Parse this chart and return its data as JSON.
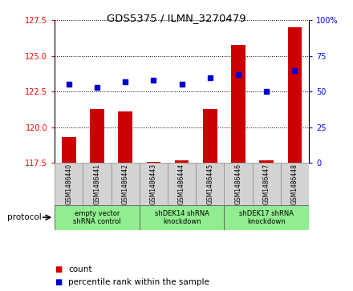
{
  "title": "GDS5375 / ILMN_3270479",
  "samples": [
    "GSM1486440",
    "GSM1486441",
    "GSM1486442",
    "GSM1486443",
    "GSM1486444",
    "GSM1486445",
    "GSM1486446",
    "GSM1486447",
    "GSM1486448"
  ],
  "count_values": [
    119.3,
    121.3,
    121.1,
    117.6,
    117.7,
    121.3,
    125.8,
    117.7,
    127.0
  ],
  "percentile_values": [
    55,
    53,
    57,
    58,
    55,
    60,
    62,
    50,
    65
  ],
  "ylim_left": [
    117.5,
    127.5
  ],
  "ylim_right": [
    0,
    100
  ],
  "yticks_left": [
    117.5,
    120,
    122.5,
    125,
    127.5
  ],
  "yticks_right": [
    0,
    25,
    50,
    75,
    100
  ],
  "group_labels": [
    "empty vector\nshRNA control",
    "shDEK14 shRNA\nknockdown",
    "shDEK17 shRNA\nknockdown"
  ],
  "group_starts": [
    0,
    3,
    6
  ],
  "group_ends": [
    3,
    6,
    9
  ],
  "group_color": "#90EE90",
  "bar_color": "#CC0000",
  "dot_color": "#0000CC",
  "bar_width": 0.5,
  "legend_count_label": "count",
  "legend_percentile_label": "percentile rank within the sample",
  "protocol_label": "protocol",
  "bg_color": "#ffffff",
  "sample_box_color": "#D3D3D3"
}
